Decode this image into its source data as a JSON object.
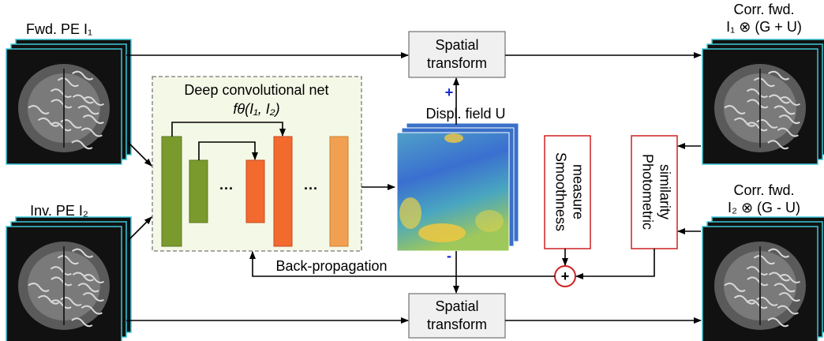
{
  "inputs": [
    {
      "label": "Fwd. PE I₁"
    },
    {
      "label": "Inv. PE I₂"
    }
  ],
  "network": {
    "title": "Deep convolutional net",
    "formula": "fθ(I₁, I₂)",
    "ellipsis": [
      "···",
      "···"
    ]
  },
  "displacement_field": {
    "label": "Displ. field U",
    "plus": "+",
    "minus": "-"
  },
  "transforms": [
    {
      "line1": "Spatial",
      "line2": "transform"
    },
    {
      "line1": "Spatial",
      "line2": "transform"
    }
  ],
  "losses": [
    {
      "line1": "Smoothness",
      "line2": "measure"
    },
    {
      "line1": "Photometric",
      "line2": "similarity"
    }
  ],
  "combiner": {
    "symbol": "+"
  },
  "backprop": {
    "label": "Back-propagation"
  },
  "outputs": [
    {
      "line1": "Corr. fwd.",
      "line2": "I₁ ⊗ (G + U)"
    },
    {
      "line1": "Corr. fwd.",
      "line2": "I₂ ⊗ (G - U)"
    }
  ]
}
